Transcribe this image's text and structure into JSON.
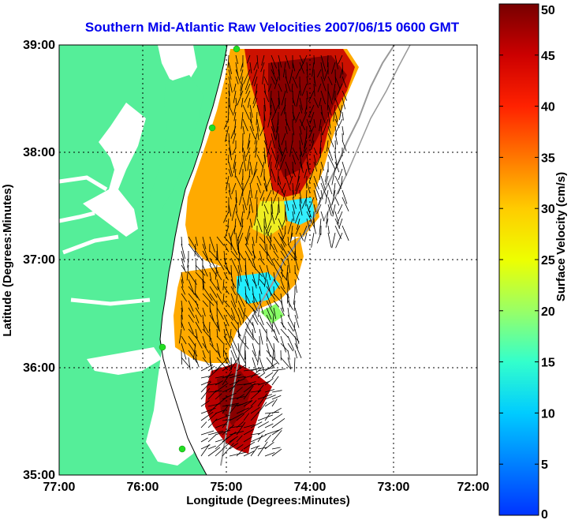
{
  "title": "Southern Mid-Atlantic Raw Velocities 2007/06/15 0600 GMT",
  "x_axis": {
    "label": "Longitude (Degrees:Minutes)",
    "ticks": [
      "77:00",
      "76:00",
      "75:00",
      "74:00",
      "73:00",
      "72:00"
    ]
  },
  "y_axis": {
    "label": "Latitude (Degrees:Minutes)",
    "ticks": [
      "39:00",
      "38:00",
      "37:00",
      "36:00",
      "35:00"
    ]
  },
  "colorbar": {
    "label": "Surface Velocity (cm/s)",
    "ticks": [
      "50",
      "45",
      "40",
      "35",
      "30",
      "25",
      "20",
      "15",
      "10",
      "5",
      "0"
    ],
    "min": 0,
    "max": 50
  },
  "colors": {
    "land": "#55ee99",
    "water": "#ffffff",
    "title": "#0000ee",
    "station": "#22dd22",
    "bathymetry": "#999999"
  },
  "map": {
    "lon_range": [
      -77,
      -72
    ],
    "lat_range": [
      35,
      39
    ],
    "grid": true,
    "features": [
      "land",
      "coastline",
      "bathymetry-contour",
      "velocity-field",
      "velocity-vectors",
      "radar-stations"
    ]
  }
}
